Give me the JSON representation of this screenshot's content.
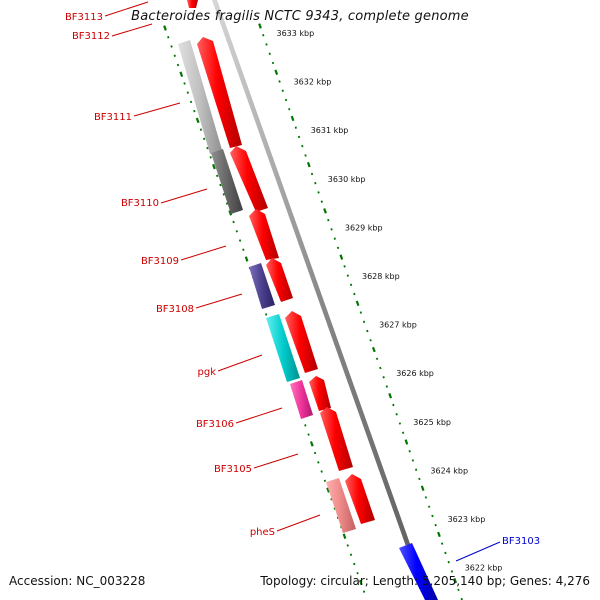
{
  "title": "Bacteroides fragilis NCTC 9343, complete genome",
  "footer": {
    "accession": "Accession: NC_003228",
    "summary": "Topology: circular; Length: 5,205,140 bp; Genes: 4,276"
  },
  "ruler": {
    "labels": [
      "3633 kbp",
      "3632 kbp",
      "3631 kbp",
      "3630 kbp",
      "3629 kbp",
      "3628 kbp",
      "3627 kbp",
      "3626 kbp",
      "3625 kbp",
      "3624 kbp",
      "3623 kbp",
      "3622 kbp"
    ]
  },
  "genes": {
    "BF3113": "BF3113",
    "BF3112": "BF3112",
    "BF3111": "BF3111",
    "BF3110": "BF3110",
    "BF3109": "BF3109",
    "BF3108": "BF3108",
    "pgk": "pgk",
    "BF3106": "BF3106",
    "BF3105": "BF3105",
    "pheS": "pheS",
    "BF3103": "BF3103"
  },
  "colors": {
    "forward_cds": "#ff0000",
    "reverse_cds": "#0000ff",
    "gene_label": "#cc0000",
    "reverse_label": "#0000cc",
    "tick": "#007700",
    "backbone": "#888888",
    "cog_light_gray": "#c0c0c0",
    "cog_dark_gray": "#666666",
    "cog_navy": "#4a3f8c",
    "cog_cyan": "#00cccc",
    "cog_magenta": "#ee3399",
    "cog_pink": "#ee8888"
  }
}
